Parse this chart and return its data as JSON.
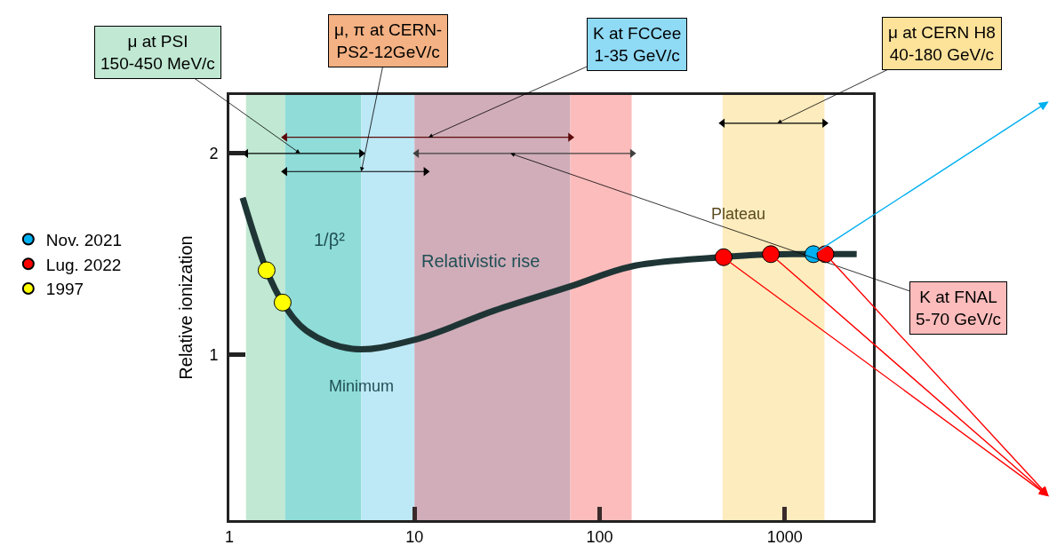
{
  "chart_data": {
    "type": "line",
    "ylabel": "Relative ionization",
    "log": "x",
    "xlim": [
      1,
      3000
    ],
    "xticks": [
      1,
      10,
      100,
      1000
    ],
    "ylim": [
      0.18,
      2.29
    ],
    "yticks": [
      1,
      2
    ],
    "grid": false,
    "legend": "left",
    "bands": [
      {
        "axis": "x",
        "from": 1.23,
        "to": 2.0,
        "color": "#c0e8d2"
      },
      {
        "axis": "x",
        "from": 2.0,
        "to": 5.16,
        "color": "#8fdcd8"
      },
      {
        "axis": "x",
        "from": 5.16,
        "to": 10,
        "color": "#bde8f5"
      },
      {
        "axis": "x",
        "from": 10,
        "to": 69.5,
        "color": "#d0adb9"
      },
      {
        "axis": "x",
        "from": 69.5,
        "to": 149,
        "color": "#fdbcbc"
      },
      {
        "axis": "x",
        "from": 462,
        "to": 1641,
        "color": "#fdecbd"
      }
    ],
    "series": [
      {
        "color": "#1f3535",
        "x": [
          1.18,
          1.59,
          1.94,
          2.61,
          4.63,
          10,
          27,
          69.5,
          150,
          453,
          650,
          1100,
          2450
        ],
        "values": [
          1.78,
          1.42,
          1.26,
          1.12,
          1.03,
          1.075,
          1.22,
          1.34,
          1.44,
          1.485,
          1.495,
          1.5,
          1.5
        ]
      },
      {
        "type": "scatter",
        "name": "Nov. 2021",
        "color": "#00b0f0",
        "marker": "circle",
        "x": [
          1430
        ],
        "values": [
          1.5
        ]
      },
      {
        "type": "scatter",
        "name": "Lug. 2022",
        "color": "#ff0000",
        "marker": "circle",
        "x": [
          468,
          842,
          1660
        ],
        "values": [
          1.485,
          1.5,
          1.5
        ]
      },
      {
        "type": "scatter",
        "name": "1997",
        "color": "#ffff00",
        "marker": "circle",
        "x": [
          1.59,
          1.94
        ],
        "values": [
          1.42,
          1.26
        ]
      },
      {
        "type": "line",
        "color": "#000000",
        "marker": "triangle",
        "x": [
          1.23,
          5.16
        ],
        "values": [
          2.0,
          2.0
        ]
      },
      {
        "type": "line",
        "color": "#5c0a0a",
        "marker": "triangle",
        "x": [
          2.0,
          69.5
        ],
        "values": [
          2.08,
          2.08
        ]
      },
      {
        "type": "line",
        "color": "#000000",
        "marker": "triangle",
        "x": [
          2.0,
          11.5
        ],
        "values": [
          1.91,
          1.91
        ]
      },
      {
        "type": "line",
        "color": "#404040",
        "marker": "triangle",
        "x": [
          10.3,
          150
        ],
        "values": [
          2.0,
          2.0
        ]
      },
      {
        "type": "line",
        "color": "#000000",
        "marker": "triangle",
        "x": [
          462,
          1641
        ],
        "values": [
          2.15,
          2.15
        ]
      }
    ],
    "annotations": [
      {
        "text": "μ at PSI\n150-450 MeV/c",
        "x": 2.41,
        "y": 2.0
      },
      {
        "text": "μ, π at CERN-\nPS2-12GeV/c",
        "x": 5.16,
        "y": 1.91
      },
      {
        "text": "K at FCCee\n1-35 GeV/c",
        "x": 11.9,
        "y": 2.08
      },
      {
        "text": "μ at CERN H8\n40-180 GeV/c",
        "x": 913,
        "y": 2.15
      },
      {
        "text": "K at FNAL\n5-70 GeV/c",
        "x": 33,
        "y": 2.0
      },
      "1/β²",
      "Relativistic rise",
      "Minimum",
      "Plateau"
    ]
  }
}
